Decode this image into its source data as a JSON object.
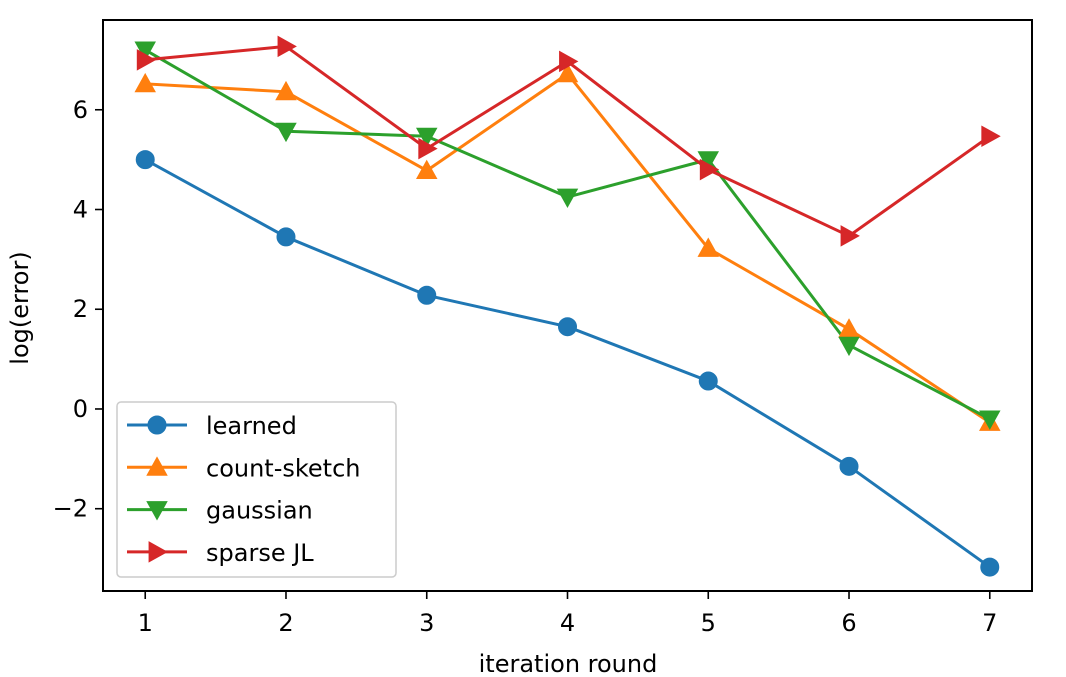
{
  "chart_data": {
    "type": "line",
    "title": "",
    "xlabel": "iteration round",
    "ylabel": "log(error)",
    "x": [
      1,
      2,
      3,
      4,
      5,
      6,
      7
    ],
    "xlim": [
      0.7,
      7.3
    ],
    "ylim": [
      -3.65,
      7.8
    ],
    "xticks": [
      1,
      2,
      3,
      4,
      5,
      6,
      7
    ],
    "xtick_labels": [
      "1",
      "2",
      "3",
      "4",
      "5",
      "6",
      "7"
    ],
    "yticks": [
      -2,
      0,
      2,
      4,
      6
    ],
    "ytick_labels": [
      "−2",
      "0",
      "2",
      "4",
      "6"
    ],
    "grid": false,
    "legend_position": "lower-left",
    "series": [
      {
        "name": "learned",
        "color": "#1f77b4",
        "marker": "circle",
        "values": [
          5.0,
          3.45,
          2.28,
          1.65,
          0.56,
          -1.15,
          -3.17
        ]
      },
      {
        "name": "count-sketch",
        "color": "#ff7f0e",
        "marker": "triangle-up",
        "values": [
          6.52,
          6.36,
          4.78,
          6.72,
          3.22,
          1.6,
          -0.27
        ]
      },
      {
        "name": "gaussian",
        "color": "#2ca02c",
        "marker": "triangle-down",
        "values": [
          7.2,
          5.57,
          5.47,
          4.25,
          5.0,
          1.28,
          -0.2
        ]
      },
      {
        "name": "sparse JL",
        "color": "#d62728",
        "marker": "triangle-right",
        "values": [
          7.0,
          7.27,
          5.22,
          6.97,
          4.8,
          3.47,
          5.47
        ]
      }
    ]
  }
}
